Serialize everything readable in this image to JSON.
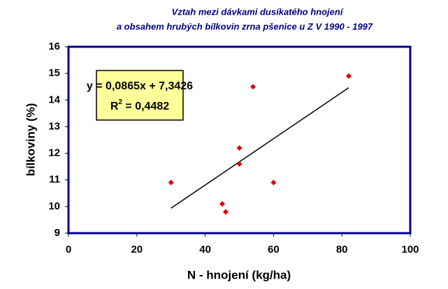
{
  "chart_data": {
    "type": "scatter",
    "title": [
      "Vztah mezi dávkami dusíkatého hnojení",
      "a obsahem hrubých bílkovin zrna pšenice u Z V 1990 - 1997"
    ],
    "x_label": "N - hnojení (kg/ha)",
    "y_label": "bílkoviny (%)",
    "series": [
      {
        "color": "#e00000",
        "x": [
          30,
          45,
          46,
          50,
          50,
          54,
          60,
          82
        ],
        "values": [
          10.9,
          10.1,
          9.8,
          12.2,
          11.6,
          14.5,
          10.9,
          14.9
        ]
      }
    ],
    "trendline": {
      "type": "linear",
      "color": "#000000"
    },
    "equation": "y = 0,0865x + 7,3426",
    "r_squared": {
      "symbol": "R",
      "exponent": "2",
      "text": " = 0,4482"
    },
    "xlim": [
      0,
      100
    ],
    "xticks": [
      0,
      20,
      40,
      60,
      80,
      100
    ],
    "ylim": [
      9,
      16
    ],
    "yticks": [
      9,
      10,
      11,
      12,
      13,
      14,
      15,
      16
    ],
    "grid": false
  }
}
